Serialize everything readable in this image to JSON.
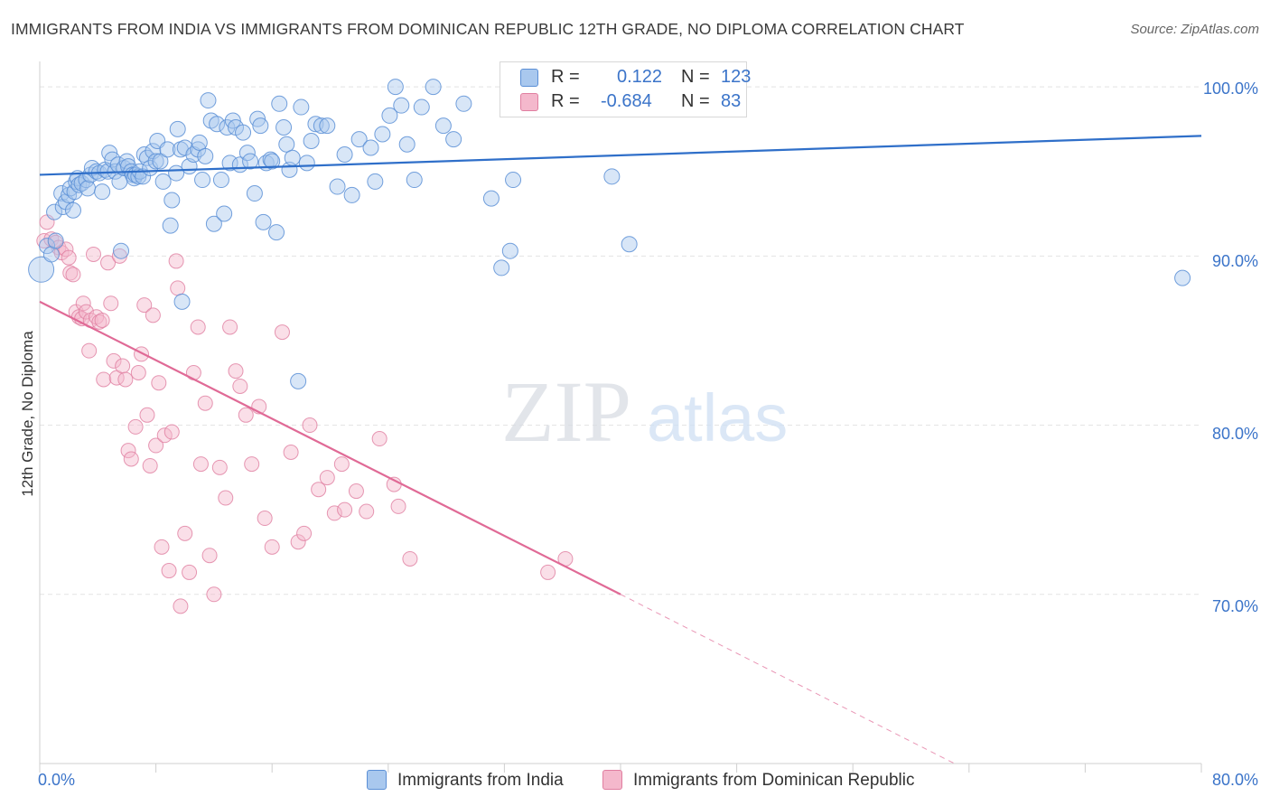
{
  "header": {
    "title": "IMMIGRANTS FROM INDIA VS IMMIGRANTS FROM DOMINICAN REPUBLIC 12TH GRADE, NO DIPLOMA CORRELATION CHART",
    "source": "Source: ZipAtlas.com"
  },
  "watermark": {
    "zip": "ZIP",
    "atlas": "atlas"
  },
  "legend": {
    "india": {
      "r_label": "R =",
      "r_value": "0.122",
      "n_label": "N =",
      "n_value": "123"
    },
    "dominican": {
      "r_label": "R =",
      "r_value": "-0.684",
      "n_label": "N =",
      "n_value": "83"
    }
  },
  "colors": {
    "india_fill": "#a9c8ee",
    "india_stroke": "#5b8fd6",
    "india_line": "#2f6fc9",
    "dominican_fill": "#f4b8cc",
    "dominican_stroke": "#e07ea0",
    "dominican_line": "#e06a96",
    "tick_label": "#3b74c9",
    "grid": "#e4e4e4"
  },
  "chart_data": {
    "type": "scatter",
    "title": "IMMIGRANTS FROM INDIA VS IMMIGRANTS FROM DOMINICAN REPUBLIC 12TH GRADE, NO DIPLOMA CORRELATION CHART",
    "xlabel": "",
    "ylabel": "12th Grade, No Diploma",
    "xlim": [
      0,
      80
    ],
    "ylim": [
      60,
      101.5
    ],
    "x_tick_labels": [
      "0.0%",
      "80.0%"
    ],
    "y_ticks": [
      70,
      80,
      90,
      100
    ],
    "y_tick_labels": [
      "70.0%",
      "80.0%",
      "90.0%",
      "100.0%"
    ],
    "grid": true,
    "legend_position": "top-center",
    "series": [
      {
        "name": "Immigrants from India",
        "r": 0.122,
        "n": 123,
        "trend": {
          "x": [
            0,
            80
          ],
          "y": [
            94.8,
            97.1
          ]
        },
        "points": [
          [
            0.1,
            89.2
          ],
          [
            0.5,
            90.6
          ],
          [
            0.8,
            90.1
          ],
          [
            1.0,
            92.6
          ],
          [
            1.1,
            90.9
          ],
          [
            1.5,
            93.7
          ],
          [
            1.6,
            92.9
          ],
          [
            1.8,
            93.2
          ],
          [
            2.0,
            93.6
          ],
          [
            2.1,
            94.0
          ],
          [
            2.3,
            92.7
          ],
          [
            2.4,
            93.8
          ],
          [
            2.5,
            94.4
          ],
          [
            2.6,
            94.6
          ],
          [
            2.7,
            94.2
          ],
          [
            2.9,
            94.3
          ],
          [
            3.2,
            94.5
          ],
          [
            3.3,
            94.0
          ],
          [
            3.5,
            94.8
          ],
          [
            3.6,
            95.2
          ],
          [
            3.9,
            95.0
          ],
          [
            4.1,
            94.9
          ],
          [
            4.3,
            93.8
          ],
          [
            4.5,
            95.1
          ],
          [
            4.7,
            95.0
          ],
          [
            4.8,
            96.1
          ],
          [
            5.0,
            95.7
          ],
          [
            5.2,
            95.0
          ],
          [
            5.4,
            95.4
          ],
          [
            5.5,
            94.4
          ],
          [
            5.6,
            90.3
          ],
          [
            5.8,
            95.2
          ],
          [
            6.0,
            95.6
          ],
          [
            6.1,
            95.3
          ],
          [
            6.3,
            95.0
          ],
          [
            6.4,
            94.8
          ],
          [
            6.5,
            94.6
          ],
          [
            6.6,
            94.8
          ],
          [
            6.8,
            94.7
          ],
          [
            6.9,
            95.0
          ],
          [
            7.1,
            94.7
          ],
          [
            7.2,
            96.0
          ],
          [
            7.4,
            95.8
          ],
          [
            7.6,
            95.2
          ],
          [
            7.8,
            96.2
          ],
          [
            8.0,
            95.6
          ],
          [
            8.1,
            96.8
          ],
          [
            8.3,
            95.6
          ],
          [
            8.5,
            94.4
          ],
          [
            8.8,
            96.3
          ],
          [
            9.0,
            91.8
          ],
          [
            9.1,
            93.3
          ],
          [
            9.4,
            94.9
          ],
          [
            9.5,
            97.5
          ],
          [
            9.7,
            96.3
          ],
          [
            9.8,
            87.3
          ],
          [
            10.0,
            96.4
          ],
          [
            10.3,
            95.3
          ],
          [
            10.6,
            96.0
          ],
          [
            10.9,
            96.3
          ],
          [
            11.0,
            96.7
          ],
          [
            11.2,
            94.5
          ],
          [
            11.4,
            95.9
          ],
          [
            11.6,
            99.2
          ],
          [
            11.8,
            98.0
          ],
          [
            12.0,
            91.9
          ],
          [
            12.2,
            97.8
          ],
          [
            12.5,
            94.5
          ],
          [
            12.7,
            92.5
          ],
          [
            12.9,
            97.6
          ],
          [
            13.1,
            95.5
          ],
          [
            13.3,
            98.0
          ],
          [
            13.5,
            97.6
          ],
          [
            13.8,
            95.4
          ],
          [
            14.0,
            97.3
          ],
          [
            14.3,
            96.1
          ],
          [
            14.5,
            95.6
          ],
          [
            14.8,
            93.7
          ],
          [
            15.0,
            98.1
          ],
          [
            15.2,
            97.7
          ],
          [
            15.4,
            92.0
          ],
          [
            15.6,
            95.5
          ],
          [
            15.9,
            95.7
          ],
          [
            16.0,
            95.6
          ],
          [
            16.3,
            91.4
          ],
          [
            16.5,
            99.0
          ],
          [
            16.8,
            97.6
          ],
          [
            17.0,
            96.6
          ],
          [
            17.2,
            95.1
          ],
          [
            17.4,
            95.8
          ],
          [
            17.8,
            82.6
          ],
          [
            18.0,
            98.8
          ],
          [
            18.4,
            95.5
          ],
          [
            18.7,
            96.8
          ],
          [
            19.0,
            97.8
          ],
          [
            19.4,
            97.7
          ],
          [
            19.8,
            97.7
          ],
          [
            20.5,
            94.1
          ],
          [
            21.0,
            96.0
          ],
          [
            21.5,
            93.6
          ],
          [
            22.0,
            96.9
          ],
          [
            22.8,
            96.4
          ],
          [
            23.1,
            94.4
          ],
          [
            23.6,
            97.2
          ],
          [
            24.1,
            98.3
          ],
          [
            24.5,
            100.0
          ],
          [
            24.9,
            98.9
          ],
          [
            25.3,
            96.6
          ],
          [
            25.8,
            94.5
          ],
          [
            26.3,
            98.8
          ],
          [
            27.1,
            100.0
          ],
          [
            27.8,
            97.7
          ],
          [
            28.5,
            96.9
          ],
          [
            29.2,
            99.0
          ],
          [
            31.1,
            93.4
          ],
          [
            31.8,
            89.3
          ],
          [
            32.6,
            94.5
          ],
          [
            32.4,
            90.3
          ],
          [
            39.4,
            94.7
          ],
          [
            40.6,
            90.7
          ],
          [
            78.7,
            88.7
          ]
        ]
      },
      {
        "name": "Immigrants from Dominican Republic",
        "r": -0.684,
        "n": 83,
        "trend": {
          "x": [
            0,
            40
          ],
          "y": [
            87.3,
            70.0
          ]
        },
        "trend_extension": {
          "x": [
            40,
            63
          ],
          "y": [
            70.0,
            60.0
          ]
        },
        "points": [
          [
            0.3,
            90.9
          ],
          [
            0.5,
            92.0
          ],
          [
            0.8,
            91.0
          ],
          [
            1.1,
            90.8
          ],
          [
            1.3,
            90.5
          ],
          [
            1.5,
            90.2
          ],
          [
            1.8,
            90.4
          ],
          [
            2.0,
            89.9
          ],
          [
            2.1,
            89.0
          ],
          [
            2.3,
            88.9
          ],
          [
            2.5,
            86.7
          ],
          [
            2.7,
            86.4
          ],
          [
            2.9,
            86.3
          ],
          [
            3.0,
            87.2
          ],
          [
            3.2,
            86.7
          ],
          [
            3.4,
            84.4
          ],
          [
            3.5,
            86.2
          ],
          [
            3.7,
            90.1
          ],
          [
            3.9,
            86.4
          ],
          [
            4.1,
            86.1
          ],
          [
            4.3,
            86.2
          ],
          [
            4.4,
            82.7
          ],
          [
            4.7,
            89.6
          ],
          [
            4.9,
            87.2
          ],
          [
            5.1,
            83.8
          ],
          [
            5.3,
            82.8
          ],
          [
            5.5,
            90.0
          ],
          [
            5.7,
            83.5
          ],
          [
            5.9,
            82.7
          ],
          [
            6.1,
            78.5
          ],
          [
            6.3,
            78.0
          ],
          [
            6.6,
            79.9
          ],
          [
            6.8,
            83.1
          ],
          [
            7.0,
            84.2
          ],
          [
            7.2,
            87.1
          ],
          [
            7.4,
            80.6
          ],
          [
            7.6,
            77.6
          ],
          [
            7.8,
            86.5
          ],
          [
            8.0,
            78.8
          ],
          [
            8.2,
            82.5
          ],
          [
            8.4,
            72.8
          ],
          [
            8.6,
            79.4
          ],
          [
            8.9,
            71.4
          ],
          [
            9.1,
            79.6
          ],
          [
            9.4,
            89.7
          ],
          [
            9.5,
            88.1
          ],
          [
            9.7,
            69.3
          ],
          [
            10.0,
            73.6
          ],
          [
            10.3,
            71.3
          ],
          [
            10.6,
            83.1
          ],
          [
            10.9,
            85.8
          ],
          [
            11.1,
            77.7
          ],
          [
            11.4,
            81.3
          ],
          [
            11.7,
            72.3
          ],
          [
            12.0,
            70.0
          ],
          [
            12.4,
            77.5
          ],
          [
            12.8,
            75.7
          ],
          [
            13.1,
            85.8
          ],
          [
            13.5,
            83.2
          ],
          [
            13.8,
            82.3
          ],
          [
            14.2,
            80.6
          ],
          [
            14.6,
            77.7
          ],
          [
            15.1,
            81.1
          ],
          [
            15.5,
            74.5
          ],
          [
            16.0,
            72.8
          ],
          [
            16.7,
            85.5
          ],
          [
            17.3,
            78.4
          ],
          [
            17.8,
            73.1
          ],
          [
            18.2,
            73.6
          ],
          [
            18.6,
            80.0
          ],
          [
            19.2,
            76.2
          ],
          [
            19.8,
            76.9
          ],
          [
            20.3,
            74.8
          ],
          [
            20.8,
            77.7
          ],
          [
            21.0,
            75.0
          ],
          [
            21.8,
            76.1
          ],
          [
            22.5,
            74.9
          ],
          [
            23.4,
            79.2
          ],
          [
            24.4,
            76.5
          ],
          [
            24.7,
            75.2
          ],
          [
            25.5,
            72.1
          ],
          [
            35.0,
            71.3
          ],
          [
            36.2,
            72.1
          ]
        ]
      }
    ]
  },
  "axes": {
    "ylabel": "12th Grade, No Diploma",
    "x_left": "0.0%",
    "x_right": "80.0%",
    "y_labels": [
      "100.0%",
      "90.0%",
      "80.0%",
      "70.0%"
    ]
  },
  "bottom_legend": {
    "india": "Immigrants from India",
    "dominican": "Immigrants from Dominican Republic"
  }
}
